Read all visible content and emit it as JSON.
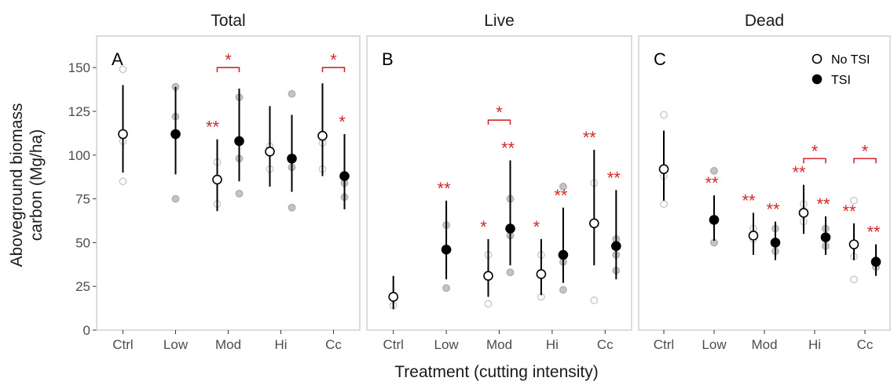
{
  "chart_data": {
    "type": "scatter",
    "ylabel_lines": [
      "Aboveground biomass",
      "carbon (Mg/ha)"
    ],
    "xlabel": "Treatment (cutting intensity)",
    "categories": [
      "Ctrl",
      "Low",
      "Mod",
      "Hi",
      "Cc"
    ],
    "y_ticks": [
      "0",
      "25",
      "50",
      "75",
      "100",
      "125",
      "150"
    ],
    "ylim": [
      0,
      168
    ],
    "grid": false,
    "legend_position": "top-right",
    "legend": [
      {
        "name": "No TSI",
        "marker": "open-circle"
      },
      {
        "name": "TSI",
        "marker": "filled-circle"
      }
    ],
    "colors": {
      "open_marker": "#000000",
      "filled_marker": "#000000",
      "raw_points_open": "#cccccc",
      "raw_points_filled": "#b0b0b0",
      "significance": "#d62728",
      "panel_border": "#c8c8c8"
    },
    "panels": [
      {
        "title": "Total",
        "letter": "A",
        "groups": [
          {
            "category": "Ctrl",
            "series": "No TSI",
            "mean": 112,
            "lo": 90,
            "hi": 140,
            "raw": [
              149,
              108,
              85
            ],
            "sig": ""
          },
          {
            "category": "Low",
            "series": "TSI",
            "mean": 112,
            "lo": 89,
            "hi": 139,
            "raw": [
              139,
              122,
              75
            ],
            "sig": ""
          },
          {
            "category": "Mod",
            "series": "No TSI",
            "mean": 86,
            "lo": 68,
            "hi": 109,
            "raw": [
              96,
              72
            ],
            "sig": "**"
          },
          {
            "category": "Mod",
            "series": "TSI",
            "mean": 108,
            "lo": 85,
            "hi": 138,
            "raw": [
              133,
              98,
              78
            ],
            "sig": ""
          },
          {
            "category": "Hi",
            "series": "No TSI",
            "mean": 102,
            "lo": 82,
            "hi": 128,
            "raw": [
              105,
              92
            ],
            "sig": ""
          },
          {
            "category": "Hi",
            "series": "TSI",
            "mean": 98,
            "lo": 79,
            "hi": 123,
            "raw": [
              135,
              93,
              70
            ],
            "sig": ""
          },
          {
            "category": "Cc",
            "series": "No TSI",
            "mean": 111,
            "lo": 88,
            "hi": 141,
            "raw": [
              107,
              92
            ],
            "sig": ""
          },
          {
            "category": "Cc",
            "series": "TSI",
            "mean": 88,
            "lo": 69,
            "hi": 112,
            "raw": [
              84,
              76
            ],
            "sig": "*"
          }
        ],
        "brackets": [
          {
            "category": "Mod",
            "y": 150,
            "label": "*"
          },
          {
            "category": "Cc",
            "y": 150,
            "label": "*"
          }
        ]
      },
      {
        "title": "Live",
        "letter": "B",
        "groups": [
          {
            "category": "Ctrl",
            "series": "No TSI",
            "mean": 19,
            "lo": 12,
            "hi": 31,
            "raw": [
              19,
              14
            ],
            "sig": ""
          },
          {
            "category": "Low",
            "series": "TSI",
            "mean": 46,
            "lo": 29,
            "hi": 74,
            "raw": [
              60,
              24
            ],
            "sig": "**"
          },
          {
            "category": "Mod",
            "series": "No TSI",
            "mean": 31,
            "lo": 19,
            "hi": 52,
            "raw": [
              43,
              15
            ],
            "sig": "*"
          },
          {
            "category": "Mod",
            "series": "TSI",
            "mean": 58,
            "lo": 37,
            "hi": 97,
            "raw": [
              75,
              54,
              33
            ],
            "sig": "**"
          },
          {
            "category": "Hi",
            "series": "No TSI",
            "mean": 32,
            "lo": 20,
            "hi": 52,
            "raw": [
              43,
              19
            ],
            "sig": "*"
          },
          {
            "category": "Hi",
            "series": "TSI",
            "mean": 43,
            "lo": 27,
            "hi": 70,
            "raw": [
              82,
              39,
              23
            ],
            "sig": "**"
          },
          {
            "category": "Cc",
            "series": "No TSI",
            "mean": 61,
            "lo": 37,
            "hi": 103,
            "raw": [
              84,
              17
            ],
            "sig": "**"
          },
          {
            "category": "Cc",
            "series": "TSI",
            "mean": 48,
            "lo": 29,
            "hi": 80,
            "raw": [
              52,
              43,
              34
            ],
            "sig": "**"
          }
        ],
        "brackets": [
          {
            "category": "Mod",
            "y": 120,
            "label": "*"
          }
        ]
      },
      {
        "title": "Dead",
        "letter": "C",
        "groups": [
          {
            "category": "Ctrl",
            "series": "No TSI",
            "mean": 92,
            "lo": 74,
            "hi": 114,
            "raw": [
              123,
              88,
              72
            ],
            "sig": ""
          },
          {
            "category": "Low",
            "series": "TSI",
            "mean": 63,
            "lo": 51,
            "hi": 77,
            "raw": [
              91,
              50
            ],
            "sig": "**"
          },
          {
            "category": "Mod",
            "series": "No TSI",
            "mean": 54,
            "lo": 43,
            "hi": 67,
            "raw": [
              58,
              52
            ],
            "sig": "**"
          },
          {
            "category": "Mod",
            "series": "TSI",
            "mean": 50,
            "lo": 40,
            "hi": 62,
            "raw": [
              58,
              45
            ],
            "sig": "**"
          },
          {
            "category": "Hi",
            "series": "No TSI",
            "mean": 67,
            "lo": 55,
            "hi": 83,
            "raw": [
              72,
              62
            ],
            "sig": "**"
          },
          {
            "category": "Hi",
            "series": "TSI",
            "mean": 53,
            "lo": 43,
            "hi": 65,
            "raw": [
              58,
              48
            ],
            "sig": "**"
          },
          {
            "category": "Cc",
            "series": "No TSI",
            "mean": 49,
            "lo": 40,
            "hi": 61,
            "raw": [
              74,
              42,
              29
            ],
            "sig": "**"
          },
          {
            "category": "Cc",
            "series": "TSI",
            "mean": 39,
            "lo": 31,
            "hi": 49,
            "raw": [
              40,
              36
            ],
            "sig": "**"
          }
        ],
        "brackets": [
          {
            "category": "Hi",
            "y": 98,
            "label": "*"
          },
          {
            "category": "Cc",
            "y": 98,
            "label": "*"
          }
        ]
      }
    ]
  }
}
